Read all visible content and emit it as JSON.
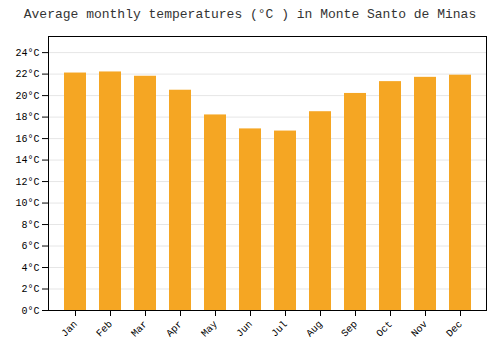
{
  "chart_data": {
    "type": "bar",
    "title": "Average monthly temperatures (°C ) in Monte Santo de Minas",
    "categories": [
      "Jan",
      "Feb",
      "Mar",
      "Apr",
      "May",
      "Jun",
      "Jul",
      "Aug",
      "Sep",
      "Oct",
      "Nov",
      "Dec"
    ],
    "values": [
      22.1,
      22.2,
      21.8,
      20.5,
      18.2,
      16.9,
      16.7,
      18.5,
      20.2,
      21.3,
      21.7,
      21.9
    ],
    "color": "#F5A623",
    "ylim": [
      0,
      25.5
    ],
    "yticks": [
      {
        "value": 0,
        "label": "0°C"
      },
      {
        "value": 2,
        "label": "2°C"
      },
      {
        "value": 4,
        "label": "4°C"
      },
      {
        "value": 6,
        "label": "6°C"
      },
      {
        "value": 8,
        "label": "8°C"
      },
      {
        "value": 10,
        "label": "10°C"
      },
      {
        "value": 12,
        "label": "12°C"
      },
      {
        "value": 14,
        "label": "14°C"
      },
      {
        "value": 16,
        "label": "16°C"
      },
      {
        "value": 18,
        "label": "18°C"
      },
      {
        "value": 20,
        "label": "20°C"
      },
      {
        "value": 22,
        "label": "22°C"
      },
      {
        "value": 24,
        "label": "24°C"
      }
    ],
    "grid": true
  }
}
